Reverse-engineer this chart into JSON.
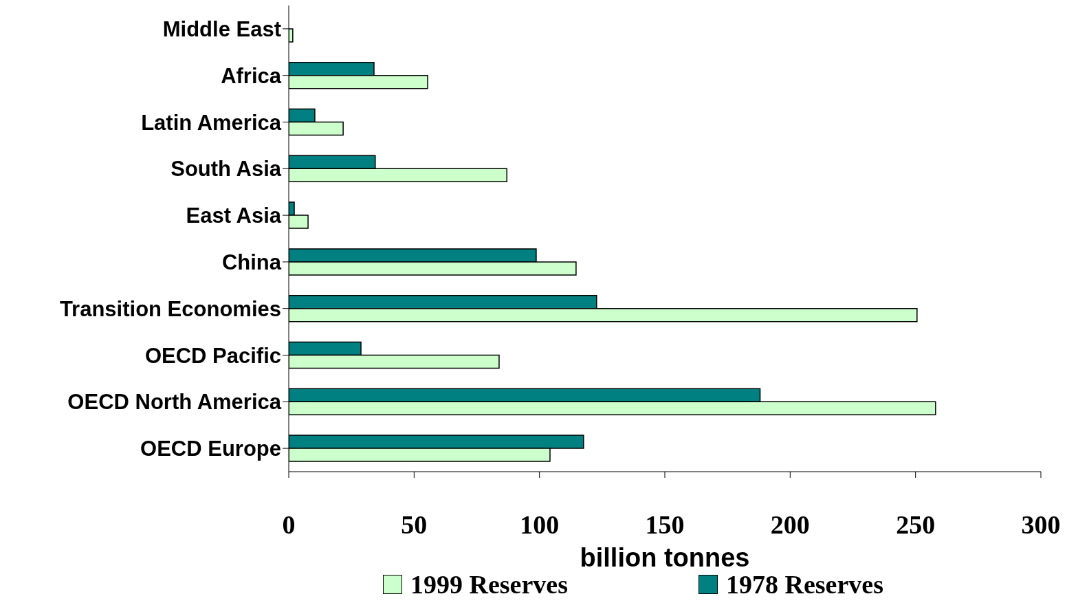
{
  "chart_data": {
    "type": "bar",
    "orientation": "horizontal",
    "categories": [
      "Middle East",
      "Africa",
      "Latin America",
      "South Asia",
      "East Asia",
      "China",
      "Transition Economies",
      "OECD Pacific",
      "OECD North America",
      "OECD Europe"
    ],
    "series": [
      {
        "name": "1999 Reserves",
        "color": "#ccffcc",
        "values": [
          1.6,
          55.4,
          21.7,
          87,
          7.7,
          114.6,
          250.6,
          83.9,
          258,
          104.2
        ]
      },
      {
        "name": "1978 Reserves",
        "color": "#008080",
        "values": [
          null,
          34,
          10.4,
          34.5,
          2.2,
          98.7,
          122.8,
          28.8,
          188,
          117.6
        ]
      }
    ],
    "xlim": [
      0,
      300
    ],
    "xticks": [
      0,
      50,
      100,
      150,
      200,
      250,
      300
    ],
    "xlabel": "billion tonnes",
    "grid": false,
    "legend": "bottom"
  }
}
